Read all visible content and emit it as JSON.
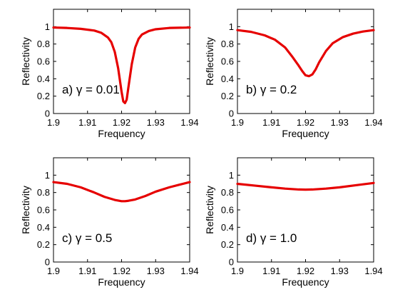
{
  "figure": {
    "background": "#ffffff",
    "line_color": "#e60000"
  },
  "chart_data": [
    {
      "type": "line",
      "annotation": "a) γ = 0.01",
      "xlabel": "Frequency",
      "ylabel": "Reflectivity",
      "xlim": [
        1.9,
        1.94
      ],
      "ylim": [
        0,
        1.2
      ],
      "xticks": [
        "1.9",
        "1.91",
        "1.92",
        "1.93",
        "1.94"
      ],
      "yticks": [
        "0",
        "0.2",
        "0.4",
        "0.6",
        "0.8",
        "1"
      ],
      "grid": false,
      "series": [
        {
          "x": [
            1.9,
            1.904,
            1.908,
            1.912,
            1.914,
            1.916,
            1.917,
            1.918,
            1.919,
            1.92,
            1.9205,
            1.921,
            1.9215,
            1.922,
            1.923,
            1.924,
            1.925,
            1.926,
            1.928,
            1.93,
            1.934,
            1.94
          ],
          "y": [
            0.99,
            0.985,
            0.975,
            0.955,
            0.93,
            0.875,
            0.82,
            0.71,
            0.52,
            0.25,
            0.14,
            0.12,
            0.16,
            0.3,
            0.57,
            0.76,
            0.86,
            0.91,
            0.95,
            0.97,
            0.985,
            0.99
          ]
        }
      ]
    },
    {
      "type": "line",
      "annotation": "b) γ = 0.2",
      "xlabel": "Frequency",
      "ylabel": "Reflectivity",
      "xlim": [
        1.9,
        1.94
      ],
      "ylim": [
        0,
        1.2
      ],
      "xticks": [
        "1.9",
        "1.91",
        "1.92",
        "1.93",
        "1.94"
      ],
      "yticks": [
        "0",
        "0.2",
        "0.4",
        "0.6",
        "0.8",
        "1"
      ],
      "grid": false,
      "series": [
        {
          "x": [
            1.9,
            1.904,
            1.908,
            1.911,
            1.914,
            1.916,
            1.918,
            1.919,
            1.92,
            1.921,
            1.922,
            1.923,
            1.924,
            1.926,
            1.928,
            1.931,
            1.934,
            1.937,
            1.94
          ],
          "y": [
            0.96,
            0.94,
            0.9,
            0.85,
            0.76,
            0.66,
            0.55,
            0.49,
            0.44,
            0.43,
            0.45,
            0.51,
            0.59,
            0.72,
            0.81,
            0.88,
            0.92,
            0.945,
            0.96
          ]
        }
      ]
    },
    {
      "type": "line",
      "annotation": "c) γ = 0.5",
      "xlabel": "Frequency",
      "ylabel": "Reflectivity",
      "xlim": [
        1.9,
        1.94
      ],
      "ylim": [
        0,
        1.2
      ],
      "xticks": [
        "1.9",
        "1.91",
        "1.92",
        "1.93",
        "1.94"
      ],
      "yticks": [
        "0",
        "0.2",
        "0.4",
        "0.6",
        "0.8",
        "1"
      ],
      "grid": false,
      "series": [
        {
          "x": [
            1.9,
            1.904,
            1.908,
            1.912,
            1.915,
            1.918,
            1.92,
            1.921,
            1.922,
            1.924,
            1.927,
            1.93,
            1.934,
            1.937,
            1.94
          ],
          "y": [
            0.92,
            0.9,
            0.86,
            0.8,
            0.75,
            0.715,
            0.7,
            0.7,
            0.705,
            0.72,
            0.76,
            0.81,
            0.86,
            0.89,
            0.92
          ]
        }
      ]
    },
    {
      "type": "line",
      "annotation": "d) γ = 1.0",
      "xlabel": "Frequency",
      "ylabel": "Reflectivity",
      "xlim": [
        1.9,
        1.94
      ],
      "ylim": [
        0,
        1.2
      ],
      "xticks": [
        "1.9",
        "1.91",
        "1.92",
        "1.93",
        "1.94"
      ],
      "yticks": [
        "0",
        "0.2",
        "0.4",
        "0.6",
        "0.8",
        "1"
      ],
      "grid": false,
      "series": [
        {
          "x": [
            1.9,
            1.905,
            1.91,
            1.914,
            1.918,
            1.92,
            1.922,
            1.926,
            1.93,
            1.935,
            1.94
          ],
          "y": [
            0.9,
            0.88,
            0.86,
            0.845,
            0.835,
            0.833,
            0.835,
            0.845,
            0.86,
            0.885,
            0.91
          ]
        }
      ]
    }
  ]
}
